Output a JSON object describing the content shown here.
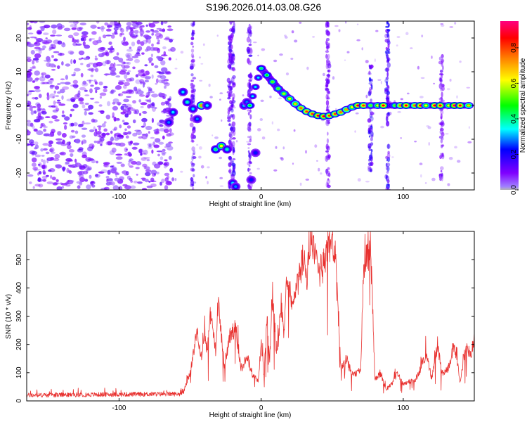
{
  "figure_title": "S196.2026.014.03.08.G26",
  "chart_data": [
    {
      "type": "heatmap",
      "name": "spectrogram",
      "xlabel": "Height of straight line (km)",
      "ylabel": "Frequency (Hz)",
      "xlim": [
        -165,
        150
      ],
      "ylim": [
        -25,
        25
      ],
      "xticks": [
        -100,
        0,
        100
      ],
      "yticks": [
        -20,
        -10,
        0,
        10,
        20
      ],
      "xtick_labels": [
        "-100",
        "0",
        "100"
      ],
      "ytick_labels": [
        "-20",
        "-10",
        "0",
        "10",
        "20"
      ],
      "noise_region_x": [
        -165,
        -62
      ],
      "colorbar": {
        "label": "Normalized spectral amplitude",
        "range": [
          0,
          0.95
        ],
        "ticks": [
          0,
          0.2,
          0.4,
          0.6,
          0.8
        ],
        "tick_labels": [
          "0.0",
          "0.2",
          "0.4",
          "0.6",
          "0.8"
        ],
        "colormap": [
          "#b4b4b4",
          "#8000ff",
          "#0000ff",
          "#00ffff",
          "#00ff00",
          "#ffff00",
          "#ff8000",
          "#ff0000",
          "#ff0080"
        ]
      },
      "trace_blobs": [
        {
          "x": -65,
          "f": -5,
          "a": 0.3
        },
        {
          "x": -62,
          "f": -2,
          "a": 0.35
        },
        {
          "x": -55,
          "f": 4,
          "a": 0.35
        },
        {
          "x": -52,
          "f": 1,
          "a": 0.4
        },
        {
          "x": -48,
          "f": -1,
          "a": 0.35
        },
        {
          "x": -45,
          "f": -4,
          "a": 0.3
        },
        {
          "x": -42,
          "f": 0,
          "a": 0.75
        },
        {
          "x": -38,
          "f": 0,
          "a": 0.35
        },
        {
          "x": -32,
          "f": -13,
          "a": 0.45
        },
        {
          "x": -28,
          "f": -12,
          "a": 0.65
        },
        {
          "x": -24,
          "f": -13,
          "a": 0.4
        },
        {
          "x": -20,
          "f": -23,
          "a": 0.35
        },
        {
          "x": -18,
          "f": -24,
          "a": 0.3
        },
        {
          "x": -12,
          "f": 0,
          "a": 0.35
        },
        {
          "x": -10,
          "f": 1,
          "a": 0.3
        },
        {
          "x": -7,
          "f": -22,
          "a": 0.25
        },
        {
          "x": -4,
          "f": -14,
          "a": 0.25
        }
      ],
      "trace_points": [
        {
          "x": -8,
          "f": 0.0,
          "a": 0.5
        },
        {
          "x": 0,
          "f": 11,
          "a": 0.45
        },
        {
          "x": 4,
          "f": 9,
          "a": 0.5
        },
        {
          "x": 8,
          "f": 7,
          "a": 0.55
        },
        {
          "x": 12,
          "f": 5,
          "a": 0.55
        },
        {
          "x": 16,
          "f": 3.5,
          "a": 0.6
        },
        {
          "x": 20,
          "f": 2,
          "a": 0.65
        },
        {
          "x": 24,
          "f": 0.5,
          "a": 0.7
        },
        {
          "x": 28,
          "f": -0.8,
          "a": 0.8
        },
        {
          "x": 32,
          "f": -1.8,
          "a": 0.85
        },
        {
          "x": 36,
          "f": -2.5,
          "a": 0.85
        },
        {
          "x": 40,
          "f": -3,
          "a": 0.9
        },
        {
          "x": 44,
          "f": -3.2,
          "a": 0.9
        },
        {
          "x": 48,
          "f": -3,
          "a": 0.85
        },
        {
          "x": 52,
          "f": -2.5,
          "a": 0.85
        },
        {
          "x": 56,
          "f": -2,
          "a": 0.8
        },
        {
          "x": 60,
          "f": -1.2,
          "a": 0.75
        },
        {
          "x": 64,
          "f": -0.5,
          "a": 0.65
        },
        {
          "x": 68,
          "f": 0,
          "a": 0.9
        },
        {
          "x": 72,
          "f": 0,
          "a": 0.85
        },
        {
          "x": 77,
          "f": 0,
          "a": 0.55
        },
        {
          "x": 82,
          "f": 0,
          "a": 0.65
        },
        {
          "x": 86,
          "f": 0,
          "a": 0.9
        },
        {
          "x": 94,
          "f": 0,
          "a": 0.55
        },
        {
          "x": 98,
          "f": 0,
          "a": 0.8
        },
        {
          "x": 102,
          "f": 0,
          "a": 0.9
        },
        {
          "x": 108,
          "f": 0,
          "a": 0.8
        },
        {
          "x": 112,
          "f": 0,
          "a": 0.9
        },
        {
          "x": 116,
          "f": 0,
          "a": 0.65
        },
        {
          "x": 122,
          "f": 0,
          "a": 0.9
        },
        {
          "x": 126,
          "f": 0,
          "a": 0.9
        },
        {
          "x": 132,
          "f": 0,
          "a": 0.65
        },
        {
          "x": 136,
          "f": 0,
          "a": 0.95
        },
        {
          "x": 140,
          "f": 0,
          "a": 0.9
        },
        {
          "x": 146,
          "f": 0,
          "a": 0.7
        }
      ],
      "vertical_streaks": [
        {
          "x": -48,
          "f_range": [
            -25,
            25
          ],
          "a": 0.15
        },
        {
          "x": -22,
          "f_range": [
            -25,
            25
          ],
          "a": 0.15
        },
        {
          "x": -20,
          "f_range": [
            -25,
            25
          ],
          "a": 0.18
        },
        {
          "x": -8,
          "f_range": [
            -25,
            25
          ],
          "a": 0.15
        },
        {
          "x": 47,
          "f_range": [
            -25,
            25
          ],
          "a": 0.12
        },
        {
          "x": 77,
          "f_range": [
            -20,
            12
          ],
          "a": 0.22
        },
        {
          "x": 89,
          "f_range": [
            -25,
            25
          ],
          "a": 0.2
        },
        {
          "x": 127,
          "f_range": [
            -25,
            15
          ],
          "a": 0.12
        }
      ]
    },
    {
      "type": "line",
      "name": "snr",
      "xlabel": "Height of straight line (km)",
      "ylabel": "SNR (10 * v/v)",
      "xlim": [
        -165,
        150
      ],
      "ylim": [
        0,
        600
      ],
      "xticks": [
        -100,
        0,
        100
      ],
      "yticks": [
        0,
        100,
        200,
        300,
        400,
        500
      ],
      "xtick_labels": [
        "-100",
        "0",
        "100"
      ],
      "ytick_labels": [
        "0",
        "100",
        "200",
        "300",
        "400",
        "500"
      ],
      "color": "#e8302e",
      "series_keypoints": {
        "x": [
          -165,
          -55,
          -50,
          -45,
          -42,
          -40,
          -38,
          -36,
          -32,
          -30,
          -26,
          -22,
          -18,
          -14,
          -10,
          -6,
          -2,
          0,
          2,
          4,
          6,
          8,
          10,
          12,
          14,
          16,
          18,
          22,
          26,
          30,
          32,
          34,
          36,
          40,
          44,
          48,
          50,
          52,
          56,
          60,
          64,
          68,
          70,
          72,
          74,
          76,
          78,
          80,
          84,
          88,
          92,
          96,
          100,
          104,
          108,
          112,
          116,
          120,
          124,
          128,
          132,
          136,
          140,
          144,
          148,
          150
        ],
        "y": [
          20,
          25,
          100,
          250,
          150,
          230,
          180,
          310,
          180,
          350,
          120,
          230,
          260,
          110,
          160,
          90,
          70,
          210,
          90,
          300,
          150,
          380,
          180,
          200,
          350,
          210,
          460,
          330,
          420,
          520,
          400,
          560,
          550,
          450,
          480,
          560,
          570,
          520,
          120,
          150,
          90,
          100,
          110,
          460,
          500,
          520,
          420,
          80,
          95,
          40,
          60,
          100,
          60,
          70,
          70,
          110,
          170,
          80,
          190,
          90,
          120,
          200,
          70,
          200,
          150,
          240
        ]
      }
    }
  ]
}
